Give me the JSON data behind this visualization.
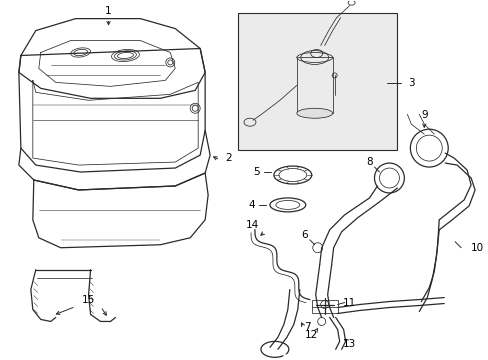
{
  "bg_color": "#ffffff",
  "line_color": "#2a2a2a",
  "lw_main": 0.9,
  "lw_thin": 0.55,
  "figsize": [
    4.89,
    3.6
  ],
  "dpi": 100
}
